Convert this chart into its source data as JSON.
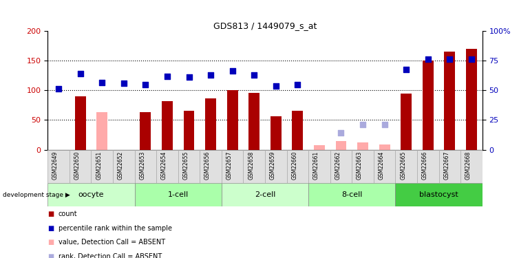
{
  "title": "GDS813 / 1449079_s_at",
  "samples": [
    "GSM22649",
    "GSM22650",
    "GSM22651",
    "GSM22652",
    "GSM22653",
    "GSM22654",
    "GSM22655",
    "GSM22656",
    "GSM22657",
    "GSM22658",
    "GSM22659",
    "GSM22660",
    "GSM22661",
    "GSM22662",
    "GSM22663",
    "GSM22664",
    "GSM22665",
    "GSM22666",
    "GSM22667",
    "GSM22668"
  ],
  "count_values": [
    0,
    90,
    63,
    0,
    63,
    82,
    66,
    86,
    100,
    96,
    56,
    65,
    8,
    15,
    12,
    9,
    95,
    150,
    165,
    170
  ],
  "count_absent": [
    true,
    false,
    true,
    true,
    false,
    false,
    false,
    false,
    false,
    false,
    false,
    false,
    true,
    true,
    true,
    true,
    false,
    false,
    false,
    false
  ],
  "percentile_values": [
    103,
    128,
    113,
    112,
    110,
    124,
    122,
    126,
    133,
    126,
    107,
    110,
    0,
    28,
    42,
    42,
    135,
    152,
    152,
    152
  ],
  "percentile_absent": [
    false,
    false,
    false,
    false,
    false,
    false,
    false,
    false,
    false,
    false,
    false,
    false,
    true,
    true,
    true,
    true,
    false,
    false,
    false,
    false
  ],
  "ylim_left": [
    0,
    200
  ],
  "ylim_right": [
    0,
    100
  ],
  "yticks_left": [
    0,
    50,
    100,
    150,
    200
  ],
  "yticks_right": [
    0,
    25,
    50,
    75,
    100
  ],
  "ytick_labels_right": [
    "0",
    "25",
    "50",
    "75",
    "100%"
  ],
  "hlines": [
    50,
    100,
    150
  ],
  "stages": [
    {
      "label": "oocyte",
      "start": 0,
      "end": 4,
      "color": "#ccffcc"
    },
    {
      "label": "1-cell",
      "start": 4,
      "end": 8,
      "color": "#aaffaa"
    },
    {
      "label": "2-cell",
      "start": 8,
      "end": 12,
      "color": "#ccffcc"
    },
    {
      "label": "8-cell",
      "start": 12,
      "end": 16,
      "color": "#aaffaa"
    },
    {
      "label": "blastocyst",
      "start": 16,
      "end": 20,
      "color": "#44cc44"
    }
  ],
  "bar_color_present": "#aa0000",
  "bar_color_absent": "#ffaaaa",
  "dot_color_present": "#0000bb",
  "dot_color_absent": "#aaaadd",
  "bar_width": 0.5,
  "dot_size": 40,
  "legend": [
    {
      "label": "count",
      "color": "#aa0000",
      "marker": "s"
    },
    {
      "label": "percentile rank within the sample",
      "color": "#0000bb",
      "marker": "s"
    },
    {
      "label": "value, Detection Call = ABSENT",
      "color": "#ffaaaa",
      "marker": "s"
    },
    {
      "label": "rank, Detection Call = ABSENT",
      "color": "#aaaadd",
      "marker": "s"
    }
  ]
}
